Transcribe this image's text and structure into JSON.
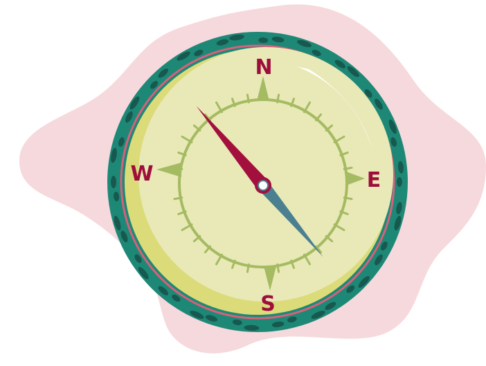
{
  "illustration": {
    "subject": "compass-illustration",
    "cardinal_labels": {
      "north": "N",
      "east": "E",
      "south": "S",
      "west": "W"
    },
    "needle_heading_deg": 140,
    "colors": {
      "background_blob": "#f6d9dc",
      "outer_ring": "#1e8877",
      "ring_spots": "#17594f",
      "inner_rim": "#d6617a",
      "dial_face": "#e9e8b7",
      "dial_shadow": "#dcdb79",
      "scale_green": "#a4bb62",
      "label_crimson": "#9e0e3c",
      "needle_north": "#a3103d",
      "needle_south": "#4b8090",
      "highlight": "#ffffff"
    }
  }
}
